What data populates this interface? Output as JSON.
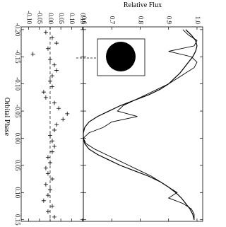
{
  "chart_data": [
    {
      "type": "line",
      "ylabel": "Relative Flux",
      "xlabel": "Orbital Phase",
      "x": [
        -0.2,
        -0.19,
        -0.18,
        -0.17,
        -0.16,
        -0.15,
        -0.14,
        -0.13,
        -0.12,
        -0.11,
        -0.1,
        -0.09,
        -0.08,
        -0.07,
        -0.06,
        -0.05,
        -0.04,
        -0.03,
        -0.02,
        -0.01,
        0.0,
        0.01,
        0.02,
        0.03,
        0.04,
        0.05,
        0.06,
        0.07,
        0.08,
        0.09,
        0.1,
        0.11,
        0.12,
        0.13,
        0.14,
        0.15
      ],
      "series": [
        {
          "color": "#000000",
          "values": [
            0.95,
            0.97,
            1.0,
            0.99,
            0.9,
            0.98,
            1.0,
            0.99,
            0.96,
            0.93,
            0.9,
            0.86,
            0.82,
            0.78,
            0.74,
            0.72,
            0.79,
            0.7,
            0.67,
            0.62,
            0.6,
            0.61,
            0.64,
            0.68,
            0.72,
            0.76,
            0.8,
            0.84,
            0.87,
            0.9,
            0.93,
            0.9,
            0.95,
            0.98,
            0.99,
            0.99
          ]
        },
        {
          "color": "#000000",
          "values": [
            0.96,
            0.98,
            0.995,
            1.0,
            0.995,
            0.985,
            0.97,
            0.955,
            0.94,
            0.92,
            0.9,
            0.87,
            0.83,
            0.78,
            0.73,
            0.69,
            0.65,
            0.62,
            0.605,
            0.6,
            0.6,
            0.605,
            0.62,
            0.65,
            0.69,
            0.73,
            0.78,
            0.83,
            0.87,
            0.9,
            0.925,
            0.945,
            0.96,
            0.975,
            0.985,
            0.99
          ]
        }
      ],
      "xlim": [
        -0.205,
        0.153
      ],
      "xticks": [
        {
          "value": -0.2,
          "label": "-0.20"
        },
        -0.15,
        {
          "value": -0.1,
          "label": "-0.10"
        },
        -0.05,
        {
          "value": 0,
          "label": "0.00"
        },
        0.05,
        {
          "value": 0.1,
          "label": "0.10"
        },
        0.15
      ],
      "ylim": [
        0.6,
        1.02
      ],
      "yticks": [
        0.6,
        0.7,
        0.8,
        0.9,
        {
          "value": 1,
          "label": "1.0"
        }
      ]
    },
    {
      "type": "scatter",
      "x": [
        -0.195,
        -0.185,
        -0.175,
        -0.165,
        -0.155,
        -0.145,
        -0.135,
        -0.125,
        -0.115,
        -0.105,
        -0.095,
        -0.085,
        -0.075,
        -0.065,
        -0.055,
        -0.045,
        -0.035,
        -0.025,
        -0.015,
        -0.005,
        0.005,
        0.015,
        0.025,
        0.035,
        0.045,
        0.055,
        0.065,
        0.075,
        0.085,
        0.095,
        0.105,
        0.115,
        0.125,
        0.135,
        0.145
      ],
      "values": [
        -0.02,
        0.01,
        0.03,
        -0.01,
        -0.08,
        0.0,
        0.02,
        0.03,
        0.01,
        0.0,
        0.01,
        -0.03,
        -0.02,
        0.02,
        0.04,
        0.08,
        0.06,
        0.03,
        0.02,
        0.0,
        0.01,
        0.02,
        0.01,
        -0.01,
        0.0,
        -0.02,
        -0.01,
        0.01,
        -0.02,
        0.0,
        -0.01,
        -0.03,
        0.01,
        -0.01,
        0.02
      ],
      "color": "#000000",
      "xlim": [
        -0.205,
        0.153
      ],
      "ylim": [
        -0.135,
        0.155
      ],
      "yticks": [
        {
          "value": -0.1,
          "label": "-0.10"
        },
        -0.05,
        {
          "value": 0,
          "label": "0.00"
        },
        0.05,
        {
          "value": 0.1,
          "label": "0.10"
        },
        0.15
      ]
    }
  ]
}
